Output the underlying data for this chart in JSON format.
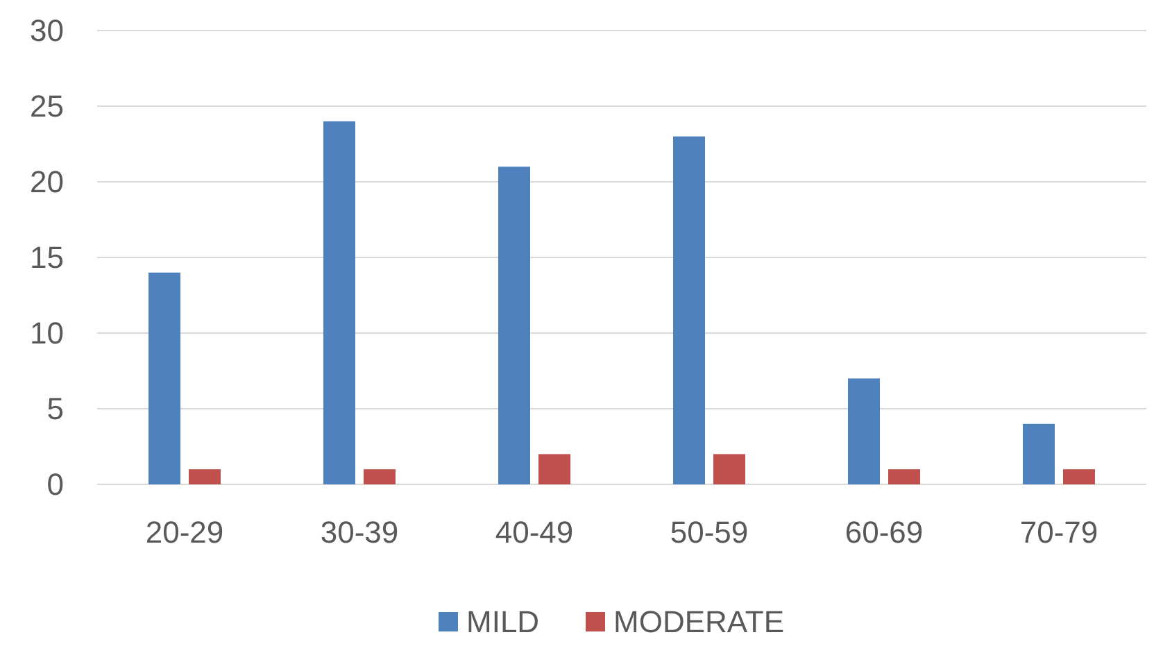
{
  "chart_data": {
    "type": "bar",
    "categories": [
      "20-29",
      "30-39",
      "40-49",
      "50-59",
      "60-69",
      "70-79"
    ],
    "series": [
      {
        "name": "MILD",
        "color": "#4f81bd",
        "values": [
          14,
          24,
          21,
          23,
          7,
          4
        ]
      },
      {
        "name": "MODERATE",
        "color": "#c0504d",
        "values": [
          1,
          1,
          2,
          2,
          1,
          1
        ]
      }
    ],
    "ylim": [
      0,
      30
    ],
    "yticks": [
      0,
      5,
      10,
      15,
      20,
      25,
      30
    ],
    "grid": "y",
    "legend": "bottom"
  }
}
